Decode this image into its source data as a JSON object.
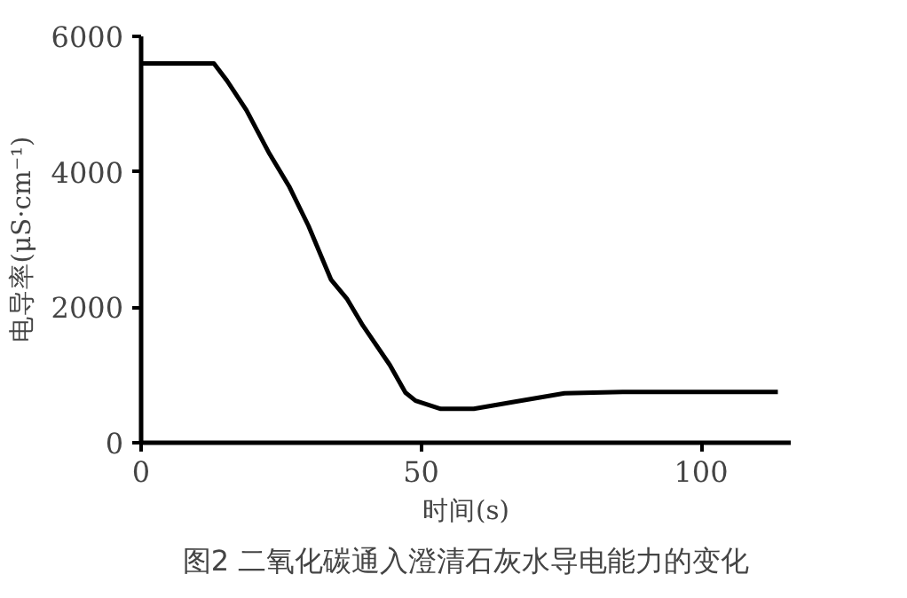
{
  "chart_data": {
    "type": "line",
    "title": "图2 二氧化碳通入澄清石灰水导电能力的变化",
    "xlabel": "时间(s)",
    "ylabel": "电导率(μS·cm⁻¹)",
    "x": [
      0,
      13,
      15.3,
      18.8,
      22.9,
      26.4,
      29.9,
      33.9,
      36.8,
      39.6,
      44.4,
      47.2,
      49,
      53.5,
      59.4,
      66.3,
      75.6,
      86,
      113.7
    ],
    "series": [
      {
        "color": "#000000",
        "values": [
          5600,
          5600,
          5350,
          4910,
          4270,
          3790,
          3200,
          2410,
          2120,
          1730,
          1150,
          740,
          620,
          500,
          500,
          600,
          730,
          750,
          750
        ]
      }
    ],
    "xlim": [
      0,
      116
    ],
    "xticks": [
      0,
      50,
      100
    ],
    "ylim": [
      0,
      6000
    ],
    "yticks": [
      0,
      2000,
      4000,
      6000
    ],
    "grid": false,
    "marker": "none",
    "line_style": "solid"
  }
}
